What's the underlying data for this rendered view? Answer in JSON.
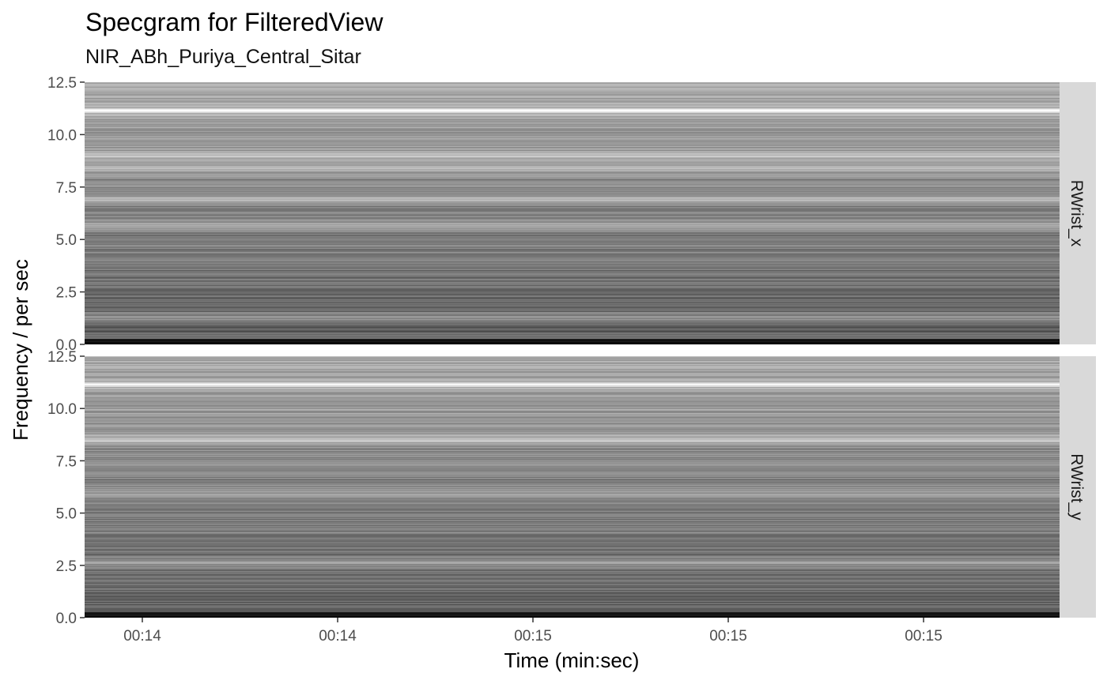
{
  "chart_data": {
    "type": "heatmap",
    "title": "Specgram for FilteredView",
    "subtitle": "NIR_ABh_Puriya_Central_Sitar",
    "xlabel": "Time (min:sec)",
    "ylabel": "Frequency / per sec",
    "x_tick_labels": [
      "00:14",
      "00:14",
      "00:15",
      "00:15",
      "00:15"
    ],
    "y_tick_labels": [
      "0.0",
      "2.5",
      "5.0",
      "7.5",
      "10.0",
      "12.5"
    ],
    "ylim": [
      0,
      12.5
    ],
    "panels": [
      {
        "strip_label": "RWrist_x",
        "bright_bands": [
          1.3,
          5.65,
          6.9,
          8.4,
          9.0,
          11.15
        ],
        "very_bright_bands": [
          11.15
        ]
      },
      {
        "strip_label": "RWrist_y",
        "bright_bands": [
          2.6,
          6.0,
          8.5,
          11.15
        ],
        "very_bright_bands": [
          11.15
        ]
      }
    ],
    "grid": false,
    "legend": "none"
  }
}
